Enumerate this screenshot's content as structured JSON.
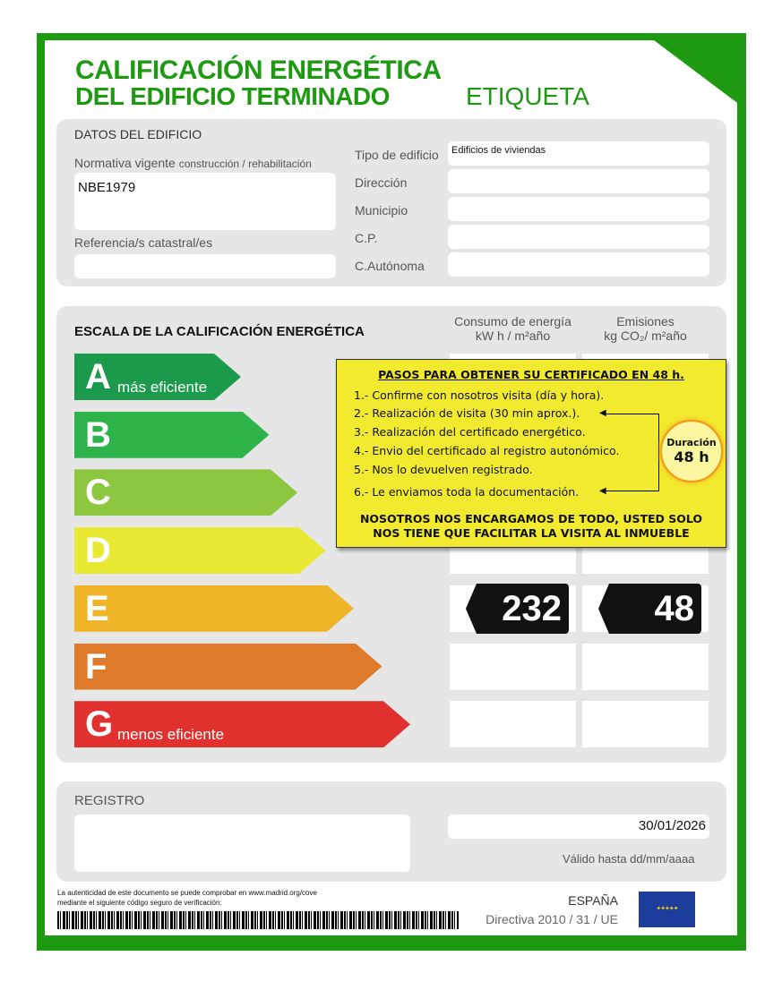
{
  "title": {
    "line1": "CALIFICACIÓN ENERGÉTICA",
    "line2": "DEL EDIFICIO TERMINADO",
    "label": "ETIQUETA"
  },
  "datos": {
    "heading": "DATOS DEL EDIFICIO",
    "normativa_label": "Normativa vigente",
    "normativa_sub": "construcción / rehabilitación",
    "normativa_value": "NBE1979",
    "referencia_label": "Referencia/s catastral/es",
    "referencia_value": "",
    "fields": [
      {
        "label": "Tipo de edificio",
        "value": "Edificios de viviendas"
      },
      {
        "label": "Dirección",
        "value": ""
      },
      {
        "label": "Municipio",
        "value": ""
      },
      {
        "label": "C.P.",
        "value": ""
      },
      {
        "label": "C.Autónoma",
        "value": ""
      }
    ]
  },
  "escala": {
    "heading": "ESCALA DE LA CALIFICACIÓN ENERGÉTICA",
    "col1": "Consumo de energía",
    "col1_unit": "kW h / m²año",
    "col2": "Emisiones",
    "col2_unit": "kg CO₂/ m²año",
    "classes": [
      {
        "letter": "A",
        "note": "más eficiente",
        "color": "#1a9a4a"
      },
      {
        "letter": "B",
        "note": "",
        "color": "#2db34a"
      },
      {
        "letter": "C",
        "note": "",
        "color": "#8dc63f"
      },
      {
        "letter": "D",
        "note": "",
        "color": "#e9e832"
      },
      {
        "letter": "E",
        "note": "",
        "color": "#f0b429"
      },
      {
        "letter": "F",
        "note": "",
        "color": "#e07a2b"
      },
      {
        "letter": "G",
        "note": "menos eficiente",
        "color": "#e0312f"
      }
    ],
    "rating": "E",
    "consumo_value": "232",
    "emisiones_value": "48"
  },
  "promo": {
    "heading": "PASOS PARA OBTENER SU CERTIFICADO EN 48 h.",
    "steps": [
      "1.- Confirme con nosotros visita (día y hora).",
      "2.- Realización de visita (30 min aprox.).",
      "3.- Realización del certificado energético.",
      "4.- Envio del certificado al registro autonómico.",
      "5.- Nos lo devuelven registrado.",
      "6.- Le enviamos toda la documentación."
    ],
    "footer1": "NOSOTROS NOS ENCARGAMOS DE TODO, USTED SOLO",
    "footer2": "NOS TIENE QUE FACILITAR LA VISITA AL INMUEBLE",
    "badge_label": "Duración",
    "badge_value": "48 h"
  },
  "registro": {
    "heading": "REGISTRO",
    "date": "30/01/2026",
    "valid_label": "Válido hasta dd/mm/aaaa"
  },
  "footer": {
    "auth1": "La autenticidad de este documento se puede comprobar en www.madrid.org/cove",
    "auth2": "mediante el siguiente código seguro de verificación:",
    "country": "ESPAÑA",
    "directive": "Directiva 2010 / 31 / UE"
  },
  "colors": {
    "brand_green": "#1e9a12",
    "promo_yellow": "#f2ea2e",
    "eu_blue": "#1d3d9c"
  }
}
